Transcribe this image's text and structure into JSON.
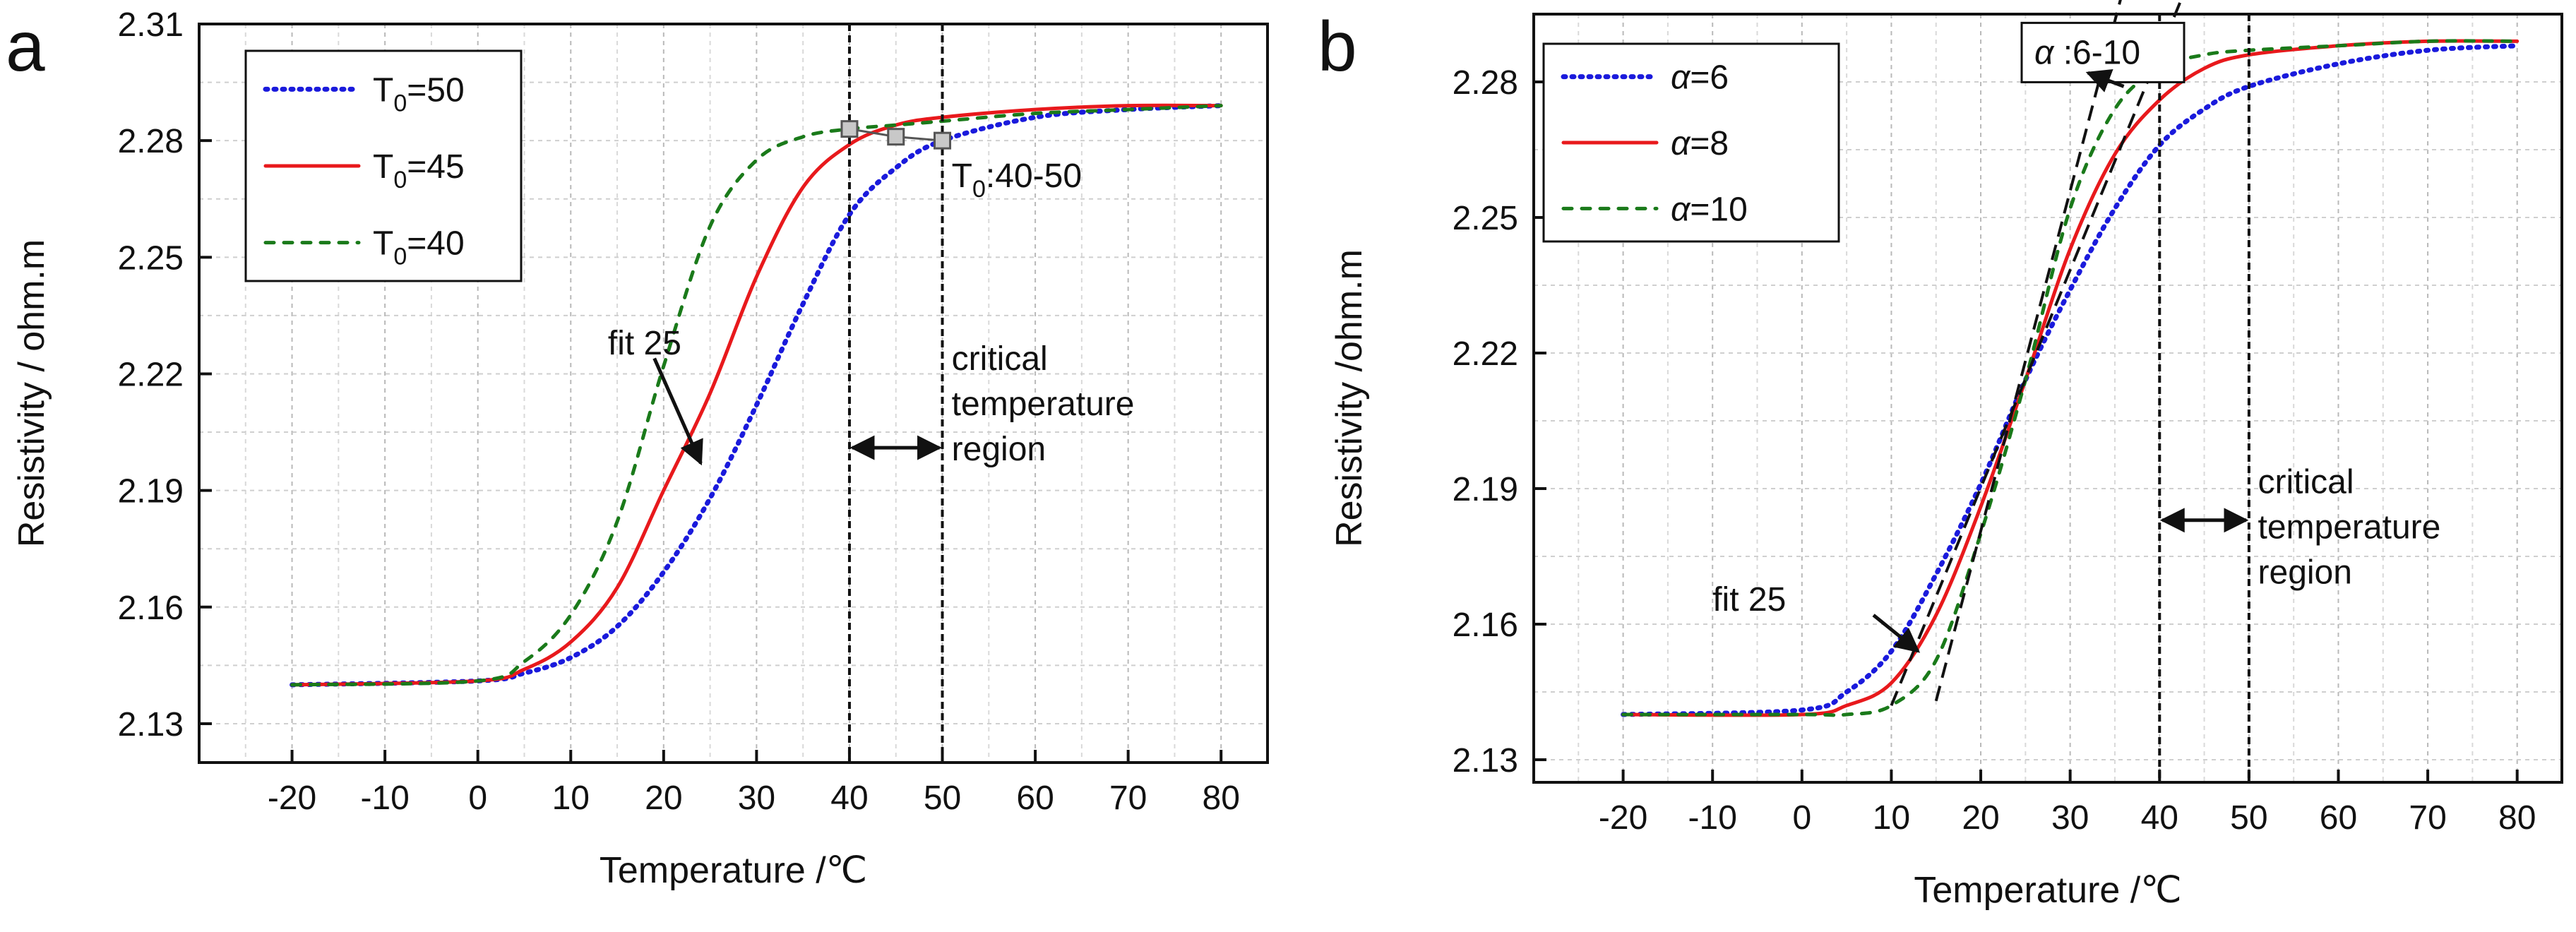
{
  "chart_data": [
    {
      "panel": "a",
      "type": "line",
      "xlabel": "Temperature /℃",
      "ylabel": "Resistivity / ohm.m",
      "xlim": [
        -30,
        85
      ],
      "ylim": [
        2.12,
        2.31
      ],
      "xticks": [
        -20,
        -10,
        0,
        10,
        20,
        30,
        40,
        50,
        60,
        70,
        80
      ],
      "yticks": [
        2.13,
        2.16,
        2.19,
        2.22,
        2.25,
        2.28,
        2.31
      ],
      "ytick_labels": [
        "2.13",
        "2.16",
        "2.19",
        "2.22",
        "2.25",
        "2.28",
        "2.31"
      ],
      "grid": true,
      "legend_position": "top-left",
      "series": [
        {
          "name": "T0=50",
          "label_main": "T",
          "label_sub": "0",
          "label_rest": "=50",
          "color": "#1a1adc",
          "style": "dotted",
          "x": [
            -20,
            0,
            5,
            10,
            15,
            20,
            25,
            30,
            35,
            40,
            45,
            50,
            60,
            70,
            80
          ],
          "y": [
            2.14,
            2.141,
            2.143,
            2.147,
            2.155,
            2.169,
            2.188,
            2.212,
            2.238,
            2.261,
            2.273,
            2.28,
            2.286,
            2.288,
            2.289
          ]
        },
        {
          "name": "T0=45",
          "label_main": "T",
          "label_sub": "0",
          "label_rest": "=45",
          "color": "#e8191c",
          "style": "solid",
          "x": [
            -20,
            0,
            5,
            10,
            15,
            20,
            25,
            30,
            35,
            40,
            45,
            50,
            60,
            70,
            80
          ],
          "y": [
            2.14,
            2.141,
            2.144,
            2.151,
            2.165,
            2.19,
            2.215,
            2.245,
            2.268,
            2.279,
            2.284,
            2.286,
            2.288,
            2.289,
            2.289
          ]
        },
        {
          "name": "T0=40",
          "label_main": "T",
          "label_sub": "0",
          "label_rest": "=40",
          "color": "#1a7a1a",
          "style": "dashed",
          "x": [
            -20,
            0,
            5,
            10,
            15,
            20,
            25,
            30,
            35,
            40,
            45,
            50,
            60,
            70,
            80
          ],
          "y": [
            2.14,
            2.141,
            2.146,
            2.158,
            2.182,
            2.222,
            2.258,
            2.275,
            2.281,
            2.283,
            2.284,
            2.285,
            2.287,
            2.288,
            2.289
          ]
        }
      ],
      "markers": {
        "x": [
          40,
          45,
          50
        ],
        "y": [
          2.283,
          2.281,
          2.28
        ]
      },
      "vlines": [
        40,
        50
      ],
      "annotations": {
        "fit": {
          "text": "fit 25",
          "tail": [
            19,
            2.224
          ],
          "head": [
            24,
            2.197
          ],
          "text_at": [
            14,
            2.225
          ]
        },
        "t0_label": {
          "main": "T",
          "sub": "0",
          "rest": ":40-50",
          "at": [
            51,
            2.268
          ]
        },
        "region_lines": [
          "critical",
          "temperature",
          "region"
        ],
        "region_at": [
          51,
          2.221
        ],
        "region_arrow_y": 2.201
      }
    },
    {
      "panel": "b",
      "type": "line",
      "xlabel": "Temperature /℃",
      "ylabel": "Resistivity /ohm.m",
      "xlim": [
        -30,
        85
      ],
      "ylim": [
        2.125,
        2.295
      ],
      "xticks": [
        -20,
        -10,
        0,
        10,
        20,
        30,
        40,
        50,
        60,
        70,
        80
      ],
      "yticks": [
        2.13,
        2.16,
        2.19,
        2.22,
        2.25,
        2.28
      ],
      "ytick_labels": [
        "2.13",
        "2.16",
        "2.19",
        "2.22",
        "2.25",
        "2.28"
      ],
      "grid": true,
      "legend_position": "top-left",
      "series": [
        {
          "name": "α=6",
          "label_main": "α",
          "label_rest": "=6",
          "color": "#1a1adc",
          "style": "dotted",
          "x": [
            -20,
            0,
            5,
            10,
            15,
            20,
            25,
            30,
            35,
            40,
            45,
            50,
            60,
            70,
            80
          ],
          "y": [
            2.14,
            2.141,
            2.145,
            2.154,
            2.171,
            2.191,
            2.214,
            2.234,
            2.252,
            2.266,
            2.274,
            2.279,
            2.284,
            2.287,
            2.288
          ]
        },
        {
          "name": "α=8",
          "label_main": "α",
          "label_rest": "=8",
          "color": "#e8191c",
          "style": "solid",
          "x": [
            -20,
            0,
            5,
            10,
            15,
            20,
            25,
            30,
            35,
            40,
            45,
            50,
            60,
            70,
            80
          ],
          "y": [
            2.14,
            2.14,
            2.142,
            2.147,
            2.162,
            2.186,
            2.214,
            2.243,
            2.264,
            2.276,
            2.283,
            2.286,
            2.288,
            2.289,
            2.289
          ]
        },
        {
          "name": "α=10",
          "label_main": "α",
          "label_rest": "=10",
          "color": "#1a7a1a",
          "style": "dashed",
          "x": [
            -20,
            0,
            5,
            10,
            15,
            20,
            25,
            30,
            35,
            40,
            45,
            50,
            60,
            70,
            80
          ],
          "y": [
            2.14,
            2.14,
            2.14,
            2.142,
            2.152,
            2.18,
            2.214,
            2.252,
            2.274,
            2.283,
            2.286,
            2.287,
            2.288,
            2.289,
            2.289
          ]
        }
      ],
      "tangents": [
        {
          "from": [
            10,
            2.142
          ],
          "to": [
            43,
            2.301
          ]
        },
        {
          "from": [
            15,
            2.143
          ],
          "to": [
            36,
            2.301
          ]
        }
      ],
      "vlines": [
        40,
        50
      ],
      "annotations": {
        "fit": {
          "text": "fit 25",
          "tail": [
            8,
            2.162
          ],
          "head": [
            13,
            2.154
          ],
          "text_at": [
            -10,
            2.163
          ]
        },
        "alpha_label": {
          "main": "α",
          "rest": " :6-10",
          "at": [
            26,
            2.284
          ],
          "arrow_tail": [
            36,
            2.279
          ],
          "arrow_head": [
            32,
            2.282
          ]
        },
        "region_lines": [
          "critical",
          "temperature",
          "region"
        ],
        "region_at": [
          51,
          2.189
        ],
        "region_arrow_y": 2.183
      }
    }
  ],
  "panel_letters": [
    "a",
    "b"
  ]
}
